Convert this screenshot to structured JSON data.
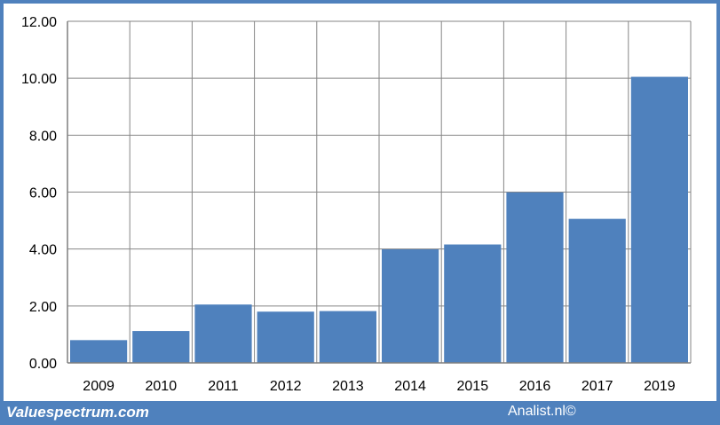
{
  "chart_data": {
    "type": "bar",
    "title": "",
    "xlabel": "",
    "ylabel": "",
    "categories": [
      "2009",
      "2010",
      "2011",
      "2012",
      "2013",
      "2014",
      "2015",
      "2016",
      "2017",
      "2019"
    ],
    "values": [
      0.8,
      1.12,
      2.05,
      1.8,
      1.82,
      3.99,
      4.16,
      5.99,
      5.06,
      10.05
    ],
    "ylim": [
      0,
      12
    ],
    "yticks": [
      "0.00",
      "2.00",
      "4.00",
      "6.00",
      "8.00",
      "10.00",
      "12.00"
    ],
    "grid": true,
    "legend": "none",
    "bar_color": "#4f81bd",
    "grid_color": "#868686"
  },
  "footer": {
    "source": "Valuespectrum.com",
    "credit": "Analist.nl©"
  }
}
